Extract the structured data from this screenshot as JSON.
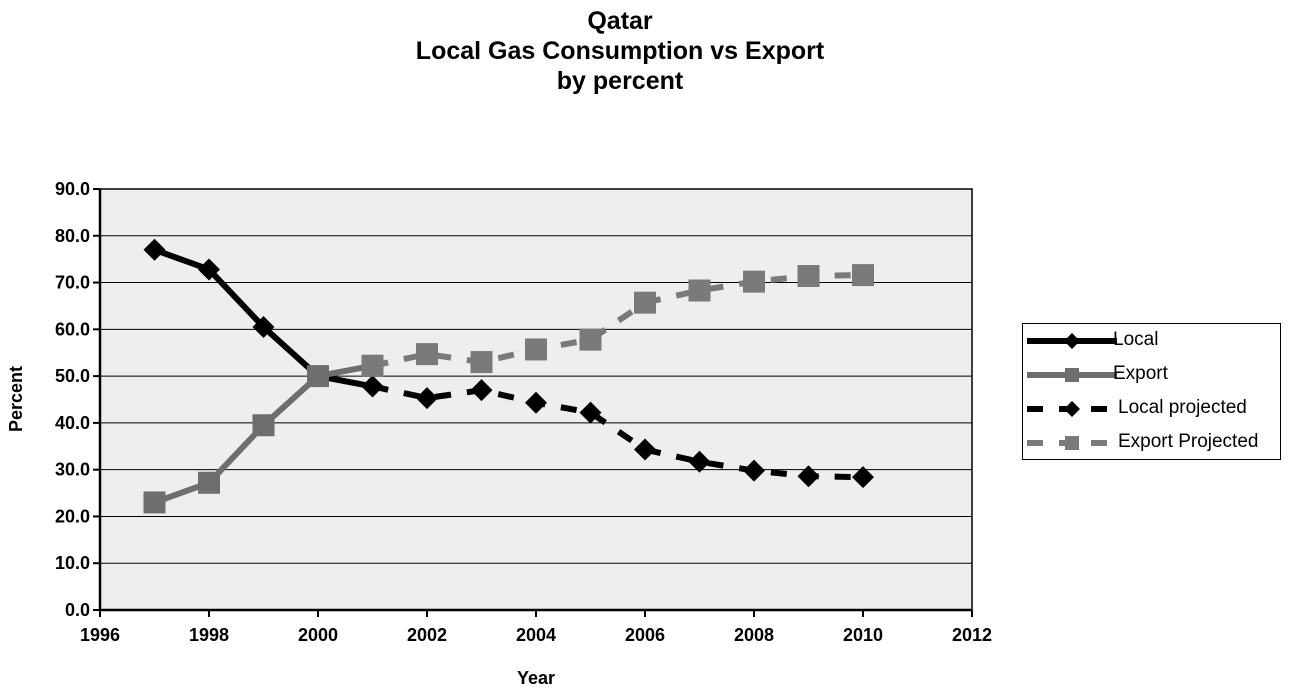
{
  "title": {
    "line1": "Qatar",
    "line2": "Local Gas Consumption vs Export",
    "line3": "by percent"
  },
  "chart_data": {
    "type": "line",
    "title": "Qatar Local Gas Consumption vs Export by percent",
    "xlabel": "Year",
    "ylabel": "Percent",
    "xlim": [
      1996,
      2012
    ],
    "ylim": [
      0,
      90
    ],
    "xticks": [
      "1996",
      "1998",
      "2000",
      "2002",
      "2004",
      "2006",
      "2008",
      "2010",
      "2012"
    ],
    "yticks": [
      "0.0",
      "10.0",
      "20.0",
      "30.0",
      "40.0",
      "50.0",
      "60.0",
      "70.0",
      "80.0",
      "90.0"
    ],
    "grid": "horizontal",
    "legend_position": "right",
    "series": [
      {
        "name": "Local",
        "style": "solid",
        "marker": "diamond",
        "color": "#000000",
        "x": [
          1997,
          1998,
          1999,
          2000,
          2001
        ],
        "y": [
          77.0,
          72.8,
          60.5,
          50.0,
          47.8
        ]
      },
      {
        "name": "Export",
        "style": "solid",
        "marker": "square",
        "color": "#6e6e6e",
        "x": [
          1997,
          1998,
          1999,
          2000,
          2001
        ],
        "y": [
          23.0,
          27.2,
          39.5,
          50.0,
          52.2
        ]
      },
      {
        "name": "Local projected",
        "style": "dashed",
        "marker": "diamond",
        "color": "#000000",
        "x": [
          2001,
          2002,
          2003,
          2004,
          2005,
          2006,
          2007,
          2008,
          2009,
          2010
        ],
        "y": [
          47.8,
          45.3,
          47.0,
          44.3,
          42.2,
          34.3,
          31.7,
          29.8,
          28.6,
          28.4
        ]
      },
      {
        "name": "Export Projected",
        "style": "dashed",
        "marker": "square",
        "color": "#7a7a7a",
        "x": [
          2001,
          2002,
          2003,
          2004,
          2005,
          2006,
          2007,
          2008,
          2009,
          2010
        ],
        "y": [
          52.2,
          54.7,
          53.0,
          55.7,
          57.8,
          65.7,
          68.3,
          70.2,
          71.4,
          71.6
        ]
      }
    ]
  }
}
